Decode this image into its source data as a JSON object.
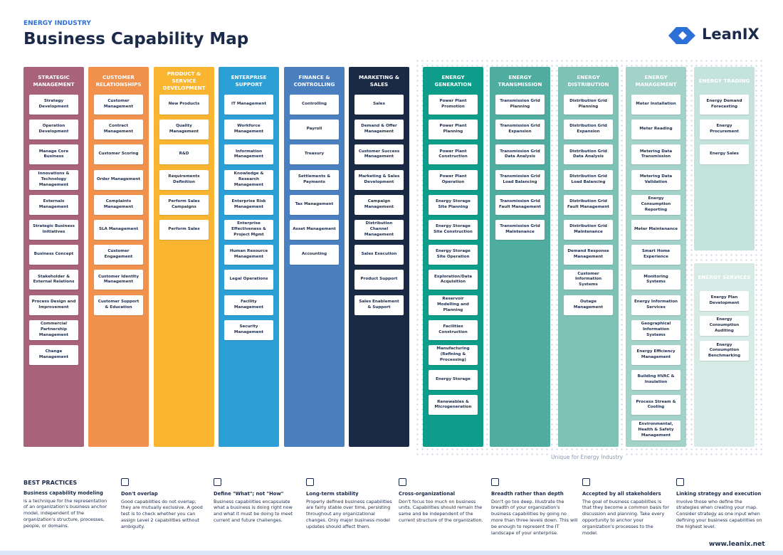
{
  "header": {
    "subtitle": "ENERGY INDUSTRY",
    "title": "Business Capability Map",
    "logo": "LeanIX"
  },
  "columns": [
    {
      "title": "Strategic Management",
      "color": "#a8637a",
      "items": [
        "Strategy Development",
        "Operation Development",
        "Manage Core Business",
        "Innovations & Technology Management",
        "Externals Management",
        "Strategic Business Initiatives",
        "Business Concept",
        "Stakeholder & External Relations",
        "Process Design and Improvement",
        "Commercial Partnership Management",
        "Change Management"
      ]
    },
    {
      "title": "Customer Relationships",
      "color": "#f0924e",
      "items": [
        "Customer Management",
        "Contract Management",
        "Customer Scoring",
        "Order Management",
        "Complaints Management",
        "SLA Management",
        "Customer Engagement",
        "Customer Identity Management",
        "Customer Support & Education"
      ]
    },
    {
      "title": "Product & Service Development",
      "color": "#f9b52f",
      "items": [
        "New Products",
        "Quality Management",
        "R&D",
        "Requirements Definition",
        "Perform Sales Campaigns",
        "Perform Sales"
      ]
    },
    {
      "title": "Enterprise Support",
      "color": "#2c9fd6",
      "items": [
        "IT Management",
        "Workforce Management",
        "Information Management",
        "Knowledge & Research Management",
        "Enterprise Risk Management",
        "Enterprise Effectiveness & Project Mgmt",
        "Human Resource Management",
        "Legal Operations",
        "Facility Management",
        "Security Management"
      ]
    },
    {
      "title": "Finance & Controlling",
      "color": "#4a7fc0",
      "items": [
        "Controlling",
        "Payroll",
        "Treasury",
        "Settlements & Payments",
        "Tax Management",
        "Asset Management",
        "Accounting"
      ]
    },
    {
      "title": "Marketing & Sales",
      "color": "#1a2a45",
      "items": [
        "Sales",
        "Demand & Offer Management",
        "Customer Success Management",
        "Marketing & Sales Development",
        "Campaign Management",
        "Distribution Channel Management",
        "Sales Execution",
        "Product Support",
        "Sales Enablement & Support"
      ]
    },
    {
      "title": "Energy Generation",
      "color": "#0d9d8a",
      "items": [
        "Power Plant Promotion",
        "Power Plant Planning",
        "Power Plant Construction",
        "Power Plant Operation",
        "Energy Storage Site Planning",
        "Energy Storage Site Construction",
        "Energy Storage Site Operation",
        "Exploration/Data Acquisition",
        "Reservoir Modelling and Planning",
        "Facilities Construction",
        "Manufacturing (Refining & Processing)",
        "Energy Storage",
        "Renewables & Microgeneration"
      ]
    },
    {
      "title": "Energy Transmission",
      "color": "#4fada0",
      "items": [
        "Transmission Grid Planning",
        "Transmission Grid Expansion",
        "Transmission Grid Data Analysis",
        "Transmission Grid Load Balancing",
        "Transmission Grid Fault Management",
        "Transmission Grid Maintenance"
      ]
    },
    {
      "title": "Energy Distribution",
      "color": "#7ec1b7",
      "items": [
        "Distribution Grid Planning",
        "Distribution Grid Expansion",
        "Distribution Grid Data Analysis",
        "Distribution Grid Load Balancing",
        "Distribution Grid Fault Management",
        "Distribution Grid Maintenance",
        "Demand Response Management",
        "Customer Information Systems",
        "Outage Management"
      ]
    },
    {
      "title": "Energy Management",
      "color": "#a3d2c9",
      "items": [
        "Meter Installation",
        "Meter Reading",
        "Metering Data Transmission",
        "Metering Data Validation",
        "Energy Consumption Reporting",
        "Meter Maintenance",
        "Smart Home Experience",
        "Monitoring Systems",
        "Energy Information Services",
        "Geographical Information Systems",
        "Energy Efficiency Management",
        "Building HVAC & Insulation",
        "Process Stream & Cooling",
        "Environmental, Health & Safety Management"
      ]
    },
    {
      "title": "Energy Trading",
      "color": "#c5e3dd",
      "items": [
        "Energy Demand Forecasting",
        "Energy Procurement",
        "Energy Sales"
      ]
    },
    {
      "title": "Energy Services",
      "color": "#d6ebe6",
      "items": [
        "Energy Plan Development",
        "Energy Consumption Auditing",
        "Energy Consumption Benchmarking"
      ]
    }
  ],
  "unique_label": "Unique for Energy Industry",
  "best_practices": {
    "heading": "BEST PRACTICES",
    "intro": {
      "title": "Business capability modeling",
      "text": "is a technique for the representation of an organization's business anchor model, independent of the organization's structure, processes, people, or domains."
    },
    "items": [
      {
        "title": "Don't overlap",
        "text": "Good capabilities do not overlap; they are mutually exclusive. A good test is to check whether you can assign Level 2 capabilities without ambiguity."
      },
      {
        "title": "Define \"What\"; not \"How\"",
        "text": "Business capabilities encapsulate what a business is doing right now and what it must be doing to meet current and future challenges."
      },
      {
        "title": "Long-term stability",
        "text": "Properly defined business capabilities are fairly stable over time, persisting throughout any organizational changes. Only major business model updates should affect them."
      },
      {
        "title": "Cross-organizational",
        "text": "Don't focus too much on business units. Capabilities should remain the same and be independent of the current structure of the organization."
      },
      {
        "title": "Breadth rather than depth",
        "text": "Don't go too deep. Illustrate the breadth of your organization's business capabilities by going no more than three levels down. This will be enough to represent the IT landscape of your enterprise."
      },
      {
        "title": "Accepted by all stakeholders",
        "text": "The goal of business capabilities is that they become a common basis for discussion and planning. Take every opportunity to anchor your organization's processes to the model."
      },
      {
        "title": "Linking strategy and execution",
        "text": "Involve those who define the strategies when creating your map. Consider strategy as one input when defining your business capabilities on the highest level."
      }
    ]
  },
  "footer": {
    "url": "www.leanix.net"
  }
}
